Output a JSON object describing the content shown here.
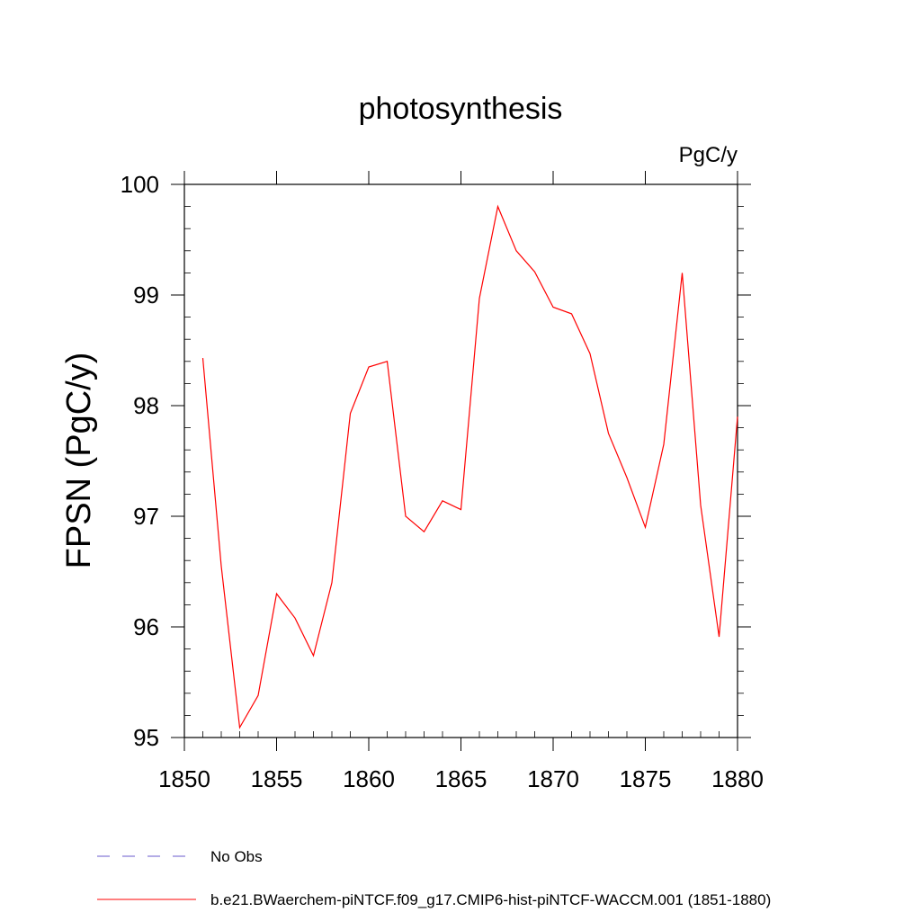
{
  "chart_data": {
    "type": "line",
    "title": "photosynthesis",
    "units_label": "PgC/y",
    "ylabel": "FPSN  (PgC/y)",
    "xlabel": "",
    "xlim": [
      1850,
      1880
    ],
    "ylim": [
      95,
      100
    ],
    "x_ticks": [
      1850,
      1855,
      1860,
      1865,
      1870,
      1875,
      1880
    ],
    "y_ticks": [
      95,
      96,
      97,
      98,
      99,
      100
    ],
    "grid": false,
    "legend_position": "bottom-left",
    "series": [
      {
        "name": "b.e21.BWaerchem-piNTCF.f09_g17.CMIP6-hist-piNTCF-WACCM.001 (1851-1880)",
        "color": "#ff0000",
        "style": "solid",
        "x": [
          1851,
          1852,
          1853,
          1854,
          1855,
          1856,
          1857,
          1858,
          1859,
          1860,
          1861,
          1862,
          1863,
          1864,
          1865,
          1866,
          1867,
          1868,
          1869,
          1870,
          1871,
          1872,
          1873,
          1874,
          1875,
          1876,
          1877,
          1878,
          1879,
          1880
        ],
        "values": [
          98.43,
          96.55,
          95.09,
          95.38,
          96.3,
          96.08,
          95.74,
          96.4,
          97.93,
          98.35,
          98.4,
          97.0,
          96.86,
          97.14,
          97.06,
          98.97,
          99.8,
          99.4,
          99.21,
          98.89,
          98.83,
          98.47,
          97.75,
          97.35,
          96.9,
          97.65,
          99.2,
          97.1,
          95.91,
          97.9
        ]
      }
    ],
    "legend": [
      {
        "label": "No Obs",
        "color": "#6a5acd",
        "style": "dashed"
      },
      {
        "label": "b.e21.BWaerchem-piNTCF.f09_g17.CMIP6-hist-piNTCF-WACCM.001 (1851-1880)",
        "color": "#ff0000",
        "style": "solid"
      }
    ]
  }
}
